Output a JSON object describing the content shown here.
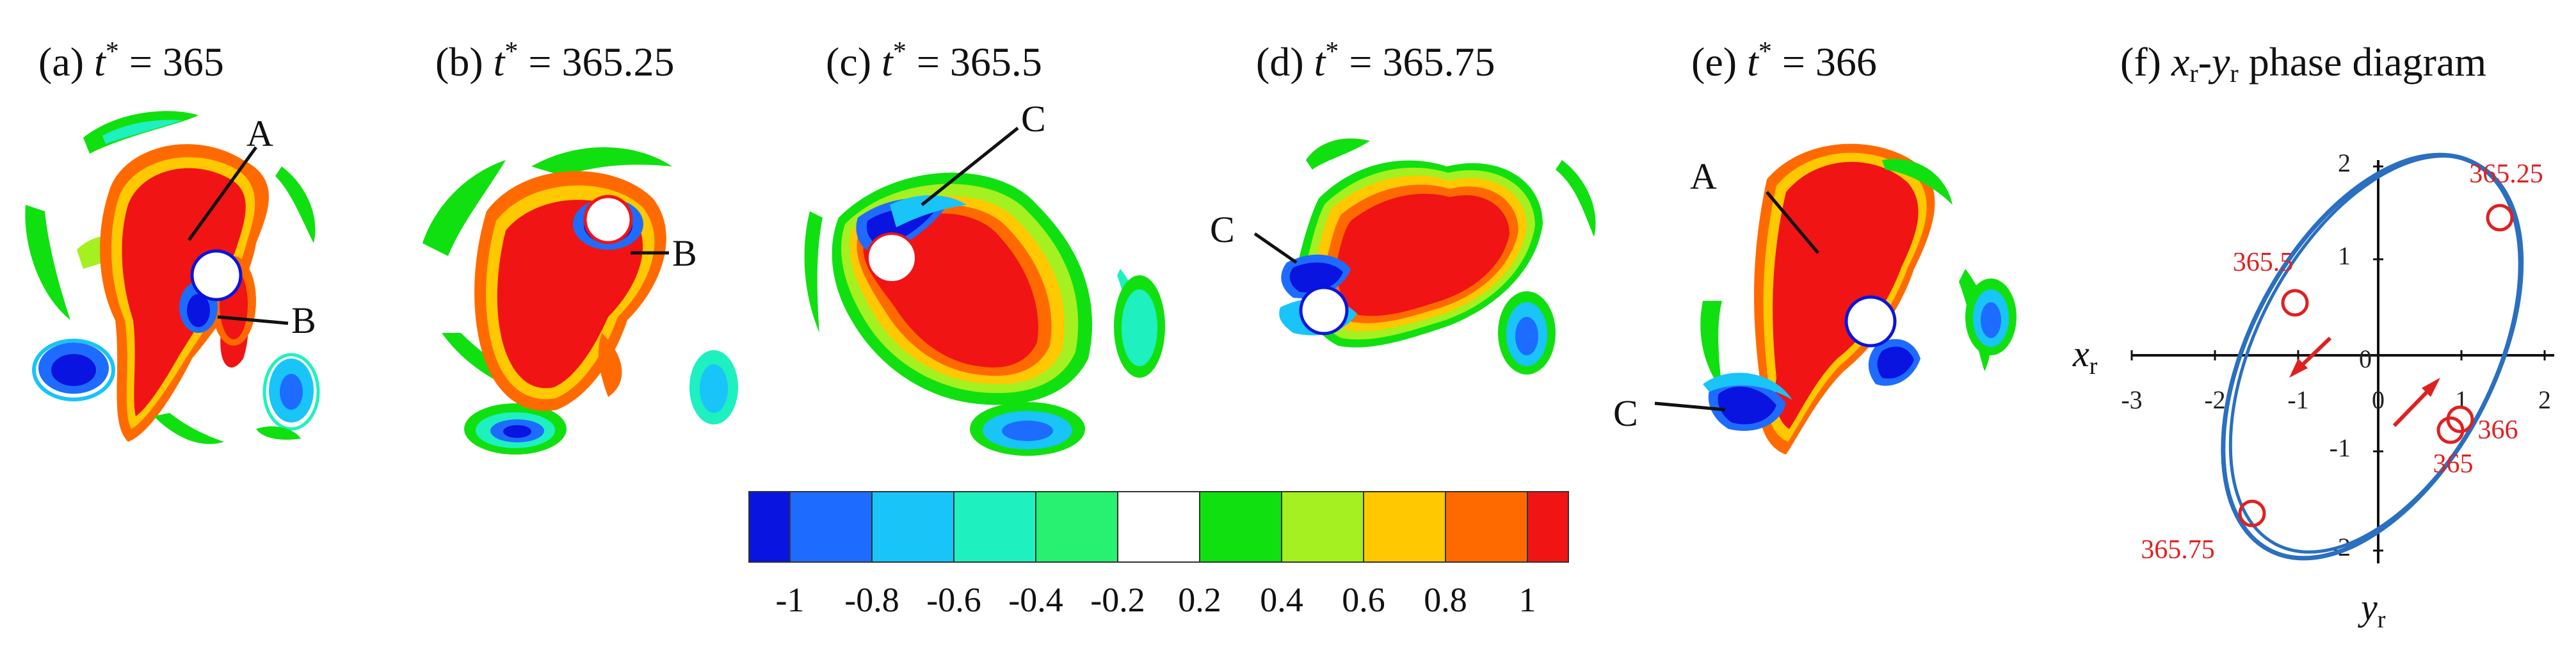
{
  "panels": [
    {
      "prefix": "(a) ",
      "t_value": "365"
    },
    {
      "prefix": "(b) ",
      "t_value": "365.25"
    },
    {
      "prefix": "(c) ",
      "t_value": "365.5"
    },
    {
      "prefix": "(d) ",
      "t_value": "365.75"
    },
    {
      "prefix": "(e) ",
      "t_value": "366"
    }
  ],
  "t_symbol": "t",
  "t_star": "*",
  "eq": " = ",
  "phase_panel": {
    "prefix": "(f) ",
    "x_var": "x",
    "y_var": "y",
    "sub": "r",
    "dash": "-",
    "suffix": " phase diagram",
    "axis_x_name": "y",
    "axis_y_name": "x",
    "x_ticks": [
      "-3",
      "-2",
      "-1",
      "0",
      "1",
      "2"
    ],
    "y_ticks": [
      "2",
      "1",
      "0",
      "-1",
      "-2"
    ],
    "point_labels": [
      "365.25",
      "365.5",
      "365.75",
      "366",
      "365"
    ]
  },
  "callouts": {
    "a_A": "A",
    "a_B": "B",
    "b_B": "B",
    "c_C": "C",
    "d_C": "C",
    "e_A": "A",
    "e_C": "C"
  },
  "colorbar": {
    "colors": [
      "#0a14e0",
      "#1e6cff",
      "#18c4f8",
      "#1ef0c0",
      "#28f070",
      "#ffffff",
      "#10e010",
      "#a4f020",
      "#ffc800",
      "#ff6a00",
      "#f01414"
    ],
    "labels": [
      "-1",
      "-0.8",
      "-0.6",
      "-0.4",
      "-0.2",
      "0.2",
      "0.4",
      "0.6",
      "0.8",
      "1"
    ]
  },
  "colors": {
    "red": "#f01414",
    "orange": "#ff6a00",
    "yellow": "#ffc800",
    "lime": "#a4f020",
    "green": "#10e010",
    "teal": "#1ef0c0",
    "cyan": "#18c4f8",
    "lightblue": "#1e6cff",
    "blue": "#0a14e0",
    "ellipse": "#2a6fc0",
    "marker": "#e02020"
  }
}
